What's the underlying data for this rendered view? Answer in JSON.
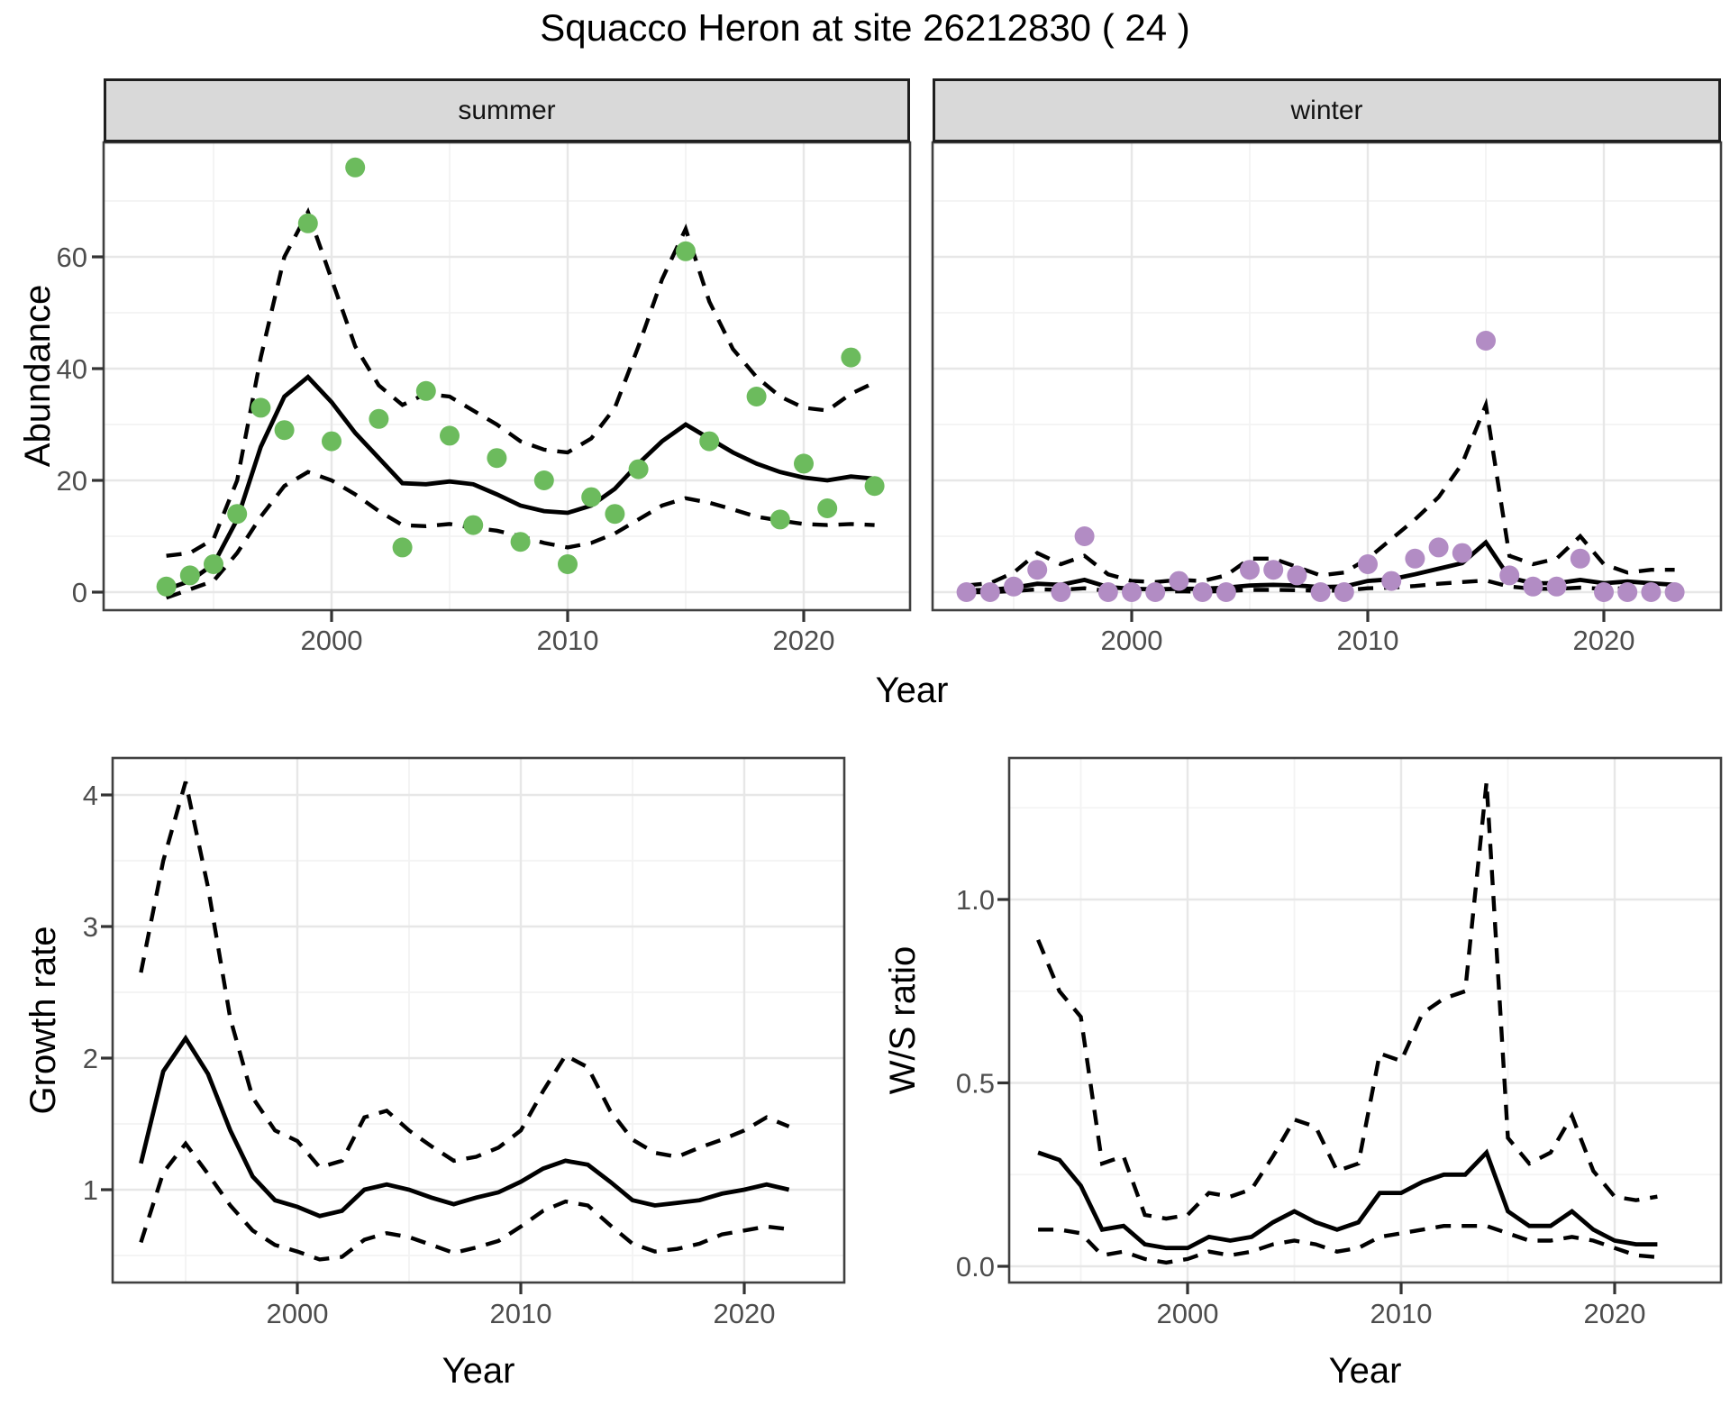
{
  "title": "Squacco Heron at site 26212830 ( 24 )",
  "colors": {
    "summer_point": "#6cbb5d",
    "winter_point": "#b28cc4",
    "line": "#000000",
    "strip_fill": "#d9d9d9",
    "strip_border": "#1f1f1f",
    "panel_border": "#404040",
    "grid_major": "#e7e7e7",
    "grid_minor": "#f3f3f3",
    "axis_text": "#4d4d4d",
    "tick_mark": "#333333",
    "background": "#ffffff"
  },
  "chart_data": [
    {
      "id": "abundance-summer",
      "type": "line+scatter",
      "facet_label": "summer",
      "xlabel": "Year",
      "ylabel": "Abundance",
      "x_tick_values": [
        2000,
        2010,
        2020
      ],
      "x_tick_labels": [
        "2000",
        "2010",
        "2020"
      ],
      "y_tick_values": [
        0,
        20,
        40,
        60
      ],
      "y_tick_labels": [
        "0",
        "20",
        "40",
        "60"
      ],
      "xlim": [
        1990.3,
        2024.5
      ],
      "ylim": [
        -3.2,
        80.5
      ],
      "legend": "none",
      "grid": true,
      "point_color": "#6cbb5d",
      "points": {
        "years": [
          1993,
          1994,
          1995,
          1996,
          1997,
          1998,
          1999,
          2000,
          2001,
          2002,
          2003,
          2004,
          2005,
          2006,
          2007,
          2008,
          2009,
          2010,
          2011,
          2012,
          2013,
          2015,
          2016,
          2018,
          2019,
          2020,
          2021,
          2022,
          2023
        ],
        "values": [
          1,
          3,
          5,
          14,
          33,
          29,
          66,
          27,
          76,
          31,
          8,
          36,
          28,
          12,
          24,
          9,
          20,
          5,
          17,
          14,
          22,
          61,
          27,
          35,
          13,
          23,
          15,
          42,
          19
        ]
      },
      "fit": {
        "years": [
          1993,
          1994,
          1995,
          1996,
          1997,
          1998,
          1999,
          2000,
          2001,
          2002,
          2003,
          2004,
          2005,
          2006,
          2007,
          2008,
          2009,
          2010,
          2011,
          2012,
          2013,
          2014,
          2015,
          2016,
          2017,
          2018,
          2019,
          2020,
          2021,
          2022,
          2023
        ],
        "values": [
          0.5,
          2,
          5,
          13,
          26,
          35,
          38.5,
          34,
          28.5,
          24,
          19.5,
          19.3,
          19.8,
          19.3,
          17.5,
          15.5,
          14.5,
          14.2,
          15.5,
          18.5,
          23,
          27,
          30,
          27.5,
          25,
          23,
          21.5,
          20.5,
          20,
          20.7,
          20.3
        ]
      },
      "upper": {
        "years": [
          1993,
          1994,
          1995,
          1996,
          1997,
          1998,
          1999,
          2000,
          2001,
          2002,
          2003,
          2004,
          2005,
          2006,
          2007,
          2008,
          2009,
          2010,
          2011,
          2012,
          2013,
          2014,
          2015,
          2016,
          2017,
          2018,
          2019,
          2020,
          2021,
          2022,
          2023
        ],
        "values": [
          6.5,
          7,
          9.5,
          20,
          42,
          60,
          68,
          56,
          44,
          37,
          33.5,
          35.5,
          35,
          32.5,
          30,
          27,
          25.5,
          25,
          27.5,
          33,
          44,
          56,
          65,
          52,
          43.5,
          38.5,
          35,
          33,
          32.5,
          35.5,
          37.5
        ]
      },
      "lower": {
        "years": [
          1993,
          1994,
          1995,
          1996,
          1997,
          1998,
          1999,
          2000,
          2001,
          2002,
          2003,
          2004,
          2005,
          2006,
          2007,
          2008,
          2009,
          2010,
          2011,
          2012,
          2013,
          2014,
          2015,
          2016,
          2017,
          2018,
          2019,
          2020,
          2021,
          2022,
          2023
        ],
        "values": [
          -1,
          0.5,
          2,
          7,
          13.5,
          19,
          21.5,
          20,
          17.5,
          14.5,
          12,
          11.8,
          12.2,
          11.5,
          11,
          10,
          8.8,
          8,
          8.8,
          10.5,
          13,
          15.5,
          16.8,
          16,
          14.8,
          13.5,
          12.8,
          12.2,
          12,
          12.2,
          12
        ]
      }
    },
    {
      "id": "abundance-winter",
      "type": "line+scatter",
      "facet_label": "winter",
      "xlabel": "Year",
      "ylabel": "Abundance",
      "x_tick_values": [
        2000,
        2010,
        2020
      ],
      "x_tick_labels": [
        "2000",
        "2010",
        "2020"
      ],
      "y_tick_values": [
        0,
        20,
        40,
        60
      ],
      "y_tick_labels": [
        "0",
        "20",
        "40",
        "60"
      ],
      "xlim": [
        1990.3,
        2024.5
      ],
      "ylim": [
        -3.2,
        80.5
      ],
      "legend": "none",
      "grid": true,
      "point_color": "#b28cc4",
      "points": {
        "years": [
          1993,
          1994,
          1995,
          1996,
          1997,
          1998,
          1999,
          2000,
          2001,
          2002,
          2003,
          2004,
          2005,
          2006,
          2007,
          2008,
          2009,
          2010,
          2011,
          2012,
          2013,
          2014,
          2015,
          2016,
          2017,
          2018,
          2019,
          2020,
          2021,
          2022,
          2023
        ],
        "values": [
          0,
          0,
          1,
          4,
          0,
          10,
          0,
          0,
          0,
          2,
          0,
          0,
          4,
          4,
          3,
          0,
          0,
          5,
          2,
          6,
          8,
          7,
          45,
          3,
          1,
          1,
          6,
          0,
          0,
          0,
          0
        ]
      },
      "fit": {
        "years": [
          1993,
          1994,
          1995,
          1996,
          1997,
          1998,
          1999,
          2000,
          2001,
          2002,
          2003,
          2004,
          2005,
          2006,
          2007,
          2008,
          2009,
          2010,
          2011,
          2012,
          2013,
          2014,
          2015,
          2016,
          2017,
          2018,
          2019,
          2020,
          2021,
          2022,
          2023
        ],
        "values": [
          0.3,
          0.4,
          0.8,
          1.5,
          1.3,
          2.2,
          0.9,
          0.6,
          0.5,
          0.6,
          0.6,
          0.8,
          1.2,
          1.3,
          1.2,
          0.9,
          1.0,
          2.0,
          2.3,
          3.2,
          4.2,
          5.2,
          8.9,
          2.6,
          1.6,
          1.6,
          2.2,
          1.6,
          1.9,
          1.6,
          1.3
        ]
      },
      "upper": {
        "years": [
          1993,
          1994,
          1995,
          1996,
          1997,
          1998,
          1999,
          2000,
          2001,
          2002,
          2003,
          2004,
          2005,
          2006,
          2007,
          2008,
          2009,
          2010,
          2011,
          2012,
          2013,
          2014,
          2015,
          2016,
          2017,
          2018,
          2019,
          2020,
          2021,
          2022,
          2023
        ],
        "values": [
          1.2,
          1.6,
          3.5,
          7,
          5,
          6.5,
          3.2,
          2,
          1.8,
          2.2,
          2,
          3,
          6,
          6,
          4.5,
          3,
          3.5,
          6,
          9.5,
          13,
          17,
          23,
          33.5,
          6.5,
          5,
          6,
          10,
          5,
          3.5,
          4,
          4
        ]
      },
      "lower": {
        "years": [
          1993,
          1994,
          1995,
          1996,
          1997,
          1998,
          1999,
          2000,
          2001,
          2002,
          2003,
          2004,
          2005,
          2006,
          2007,
          2008,
          2009,
          2010,
          2011,
          2012,
          2013,
          2014,
          2015,
          2016,
          2017,
          2018,
          2019,
          2020,
          2021,
          2022,
          2023
        ],
        "values": [
          0,
          0,
          0.2,
          0.5,
          0.4,
          0.7,
          0.2,
          0.1,
          0.1,
          0.15,
          0.1,
          0.2,
          0.4,
          0.4,
          0.35,
          0.25,
          0.3,
          0.7,
          0.8,
          1.1,
          1.5,
          1.8,
          2.1,
          1.0,
          0.6,
          0.6,
          0.8,
          0.6,
          0.7,
          0.6,
          0.5
        ]
      }
    },
    {
      "id": "growth-rate",
      "type": "line",
      "facet_label": "",
      "xlabel": "Year",
      "ylabel": "Growth rate",
      "x_tick_values": [
        2000,
        2010,
        2020
      ],
      "x_tick_labels": [
        "2000",
        "2010",
        "2020"
      ],
      "y_tick_values": [
        1,
        2,
        3,
        4
      ],
      "y_tick_labels": [
        "1",
        "2",
        "3",
        "4"
      ],
      "xlim": [
        1991.7,
        2024.5
      ],
      "ylim": [
        0.29,
        4.28
      ],
      "legend": "none",
      "grid": true,
      "fit": {
        "years": [
          1993,
          1994,
          1995,
          1996,
          1997,
          1998,
          1999,
          2000,
          2001,
          2002,
          2003,
          2004,
          2005,
          2006,
          2007,
          2008,
          2009,
          2010,
          2011,
          2012,
          2013,
          2014,
          2015,
          2016,
          2017,
          2018,
          2019,
          2020,
          2021,
          2022
        ],
        "values": [
          1.2,
          1.9,
          2.15,
          1.88,
          1.45,
          1.1,
          0.92,
          0.87,
          0.8,
          0.84,
          1.0,
          1.04,
          1.0,
          0.94,
          0.89,
          0.94,
          0.98,
          1.06,
          1.16,
          1.22,
          1.19,
          1.06,
          0.92,
          0.88,
          0.9,
          0.92,
          0.97,
          1.0,
          1.04,
          1.0
        ]
      },
      "upper": {
        "years": [
          1993,
          1994,
          1995,
          1996,
          1997,
          1998,
          1999,
          2000,
          2001,
          2002,
          2003,
          2004,
          2005,
          2006,
          2007,
          2008,
          2009,
          2010,
          2011,
          2012,
          2013,
          2014,
          2015,
          2016,
          2017,
          2018,
          2019,
          2020,
          2021,
          2022
        ],
        "values": [
          2.65,
          3.5,
          4.1,
          3.3,
          2.3,
          1.7,
          1.45,
          1.37,
          1.17,
          1.22,
          1.55,
          1.6,
          1.45,
          1.33,
          1.22,
          1.25,
          1.32,
          1.45,
          1.75,
          2.02,
          1.93,
          1.6,
          1.38,
          1.28,
          1.25,
          1.32,
          1.38,
          1.45,
          1.55,
          1.48
        ]
      },
      "lower": {
        "years": [
          1993,
          1994,
          1995,
          1996,
          1997,
          1998,
          1999,
          2000,
          2001,
          2002,
          2003,
          2004,
          2005,
          2006,
          2007,
          2008,
          2009,
          2010,
          2011,
          2012,
          2013,
          2014,
          2015,
          2016,
          2017,
          2018,
          2019,
          2020,
          2021,
          2022
        ],
        "values": [
          0.6,
          1.13,
          1.35,
          1.12,
          0.88,
          0.69,
          0.58,
          0.53,
          0.47,
          0.49,
          0.62,
          0.67,
          0.64,
          0.58,
          0.52,
          0.56,
          0.61,
          0.72,
          0.84,
          0.91,
          0.88,
          0.73,
          0.59,
          0.53,
          0.55,
          0.59,
          0.66,
          0.69,
          0.72,
          0.7
        ]
      }
    },
    {
      "id": "ws-ratio",
      "type": "line",
      "facet_label": "",
      "xlabel": "Year",
      "ylabel": "W/S ratio",
      "x_tick_values": [
        2000,
        2010,
        2020
      ],
      "x_tick_labels": [
        "2000",
        "2010",
        "2020"
      ],
      "y_tick_values": [
        0,
        0.5,
        1
      ],
      "y_tick_labels": [
        "0.0",
        "0.5",
        "1.0"
      ],
      "xlim": [
        1991.6,
        2025
      ],
      "ylim": [
        -0.04,
        1.39
      ],
      "legend": "none",
      "grid": true,
      "fit": {
        "years": [
          1993,
          1994,
          1995,
          1996,
          1997,
          1998,
          1999,
          2000,
          2001,
          2002,
          2003,
          2004,
          2005,
          2006,
          2007,
          2008,
          2009,
          2010,
          2011,
          2012,
          2013,
          2014,
          2015,
          2016,
          2017,
          2018,
          2019,
          2020,
          2021,
          2022
        ],
        "values": [
          0.31,
          0.29,
          0.22,
          0.1,
          0.11,
          0.06,
          0.05,
          0.05,
          0.08,
          0.07,
          0.08,
          0.12,
          0.15,
          0.12,
          0.1,
          0.12,
          0.2,
          0.2,
          0.23,
          0.25,
          0.25,
          0.31,
          0.15,
          0.11,
          0.11,
          0.15,
          0.1,
          0.07,
          0.06,
          0.06
        ]
      },
      "upper": {
        "years": [
          1993,
          1994,
          1995,
          1996,
          1997,
          1998,
          1999,
          2000,
          2001,
          2002,
          2003,
          2004,
          2005,
          2006,
          2007,
          2008,
          2009,
          2010,
          2011,
          2012,
          2013,
          2014,
          2015,
          2016,
          2017,
          2018,
          2019,
          2020,
          2021,
          2022
        ],
        "values": [
          0.89,
          0.75,
          0.68,
          0.28,
          0.3,
          0.14,
          0.13,
          0.14,
          0.2,
          0.19,
          0.21,
          0.3,
          0.4,
          0.38,
          0.26,
          0.28,
          0.58,
          0.56,
          0.69,
          0.73,
          0.75,
          1.32,
          0.35,
          0.28,
          0.31,
          0.41,
          0.26,
          0.19,
          0.18,
          0.19
        ]
      },
      "lower": {
        "years": [
          1993,
          1994,
          1995,
          1996,
          1997,
          1998,
          1999,
          2000,
          2001,
          2002,
          2003,
          2004,
          2005,
          2006,
          2007,
          2008,
          2009,
          2010,
          2011,
          2012,
          2013,
          2014,
          2015,
          2016,
          2017,
          2018,
          2019,
          2020,
          2021,
          2022
        ],
        "values": [
          0.1,
          0.1,
          0.09,
          0.03,
          0.04,
          0.02,
          0.01,
          0.02,
          0.04,
          0.03,
          0.04,
          0.06,
          0.07,
          0.06,
          0.04,
          0.05,
          0.08,
          0.09,
          0.1,
          0.11,
          0.11,
          0.11,
          0.09,
          0.07,
          0.07,
          0.08,
          0.07,
          0.05,
          0.03,
          0.025
        ]
      }
    }
  ]
}
